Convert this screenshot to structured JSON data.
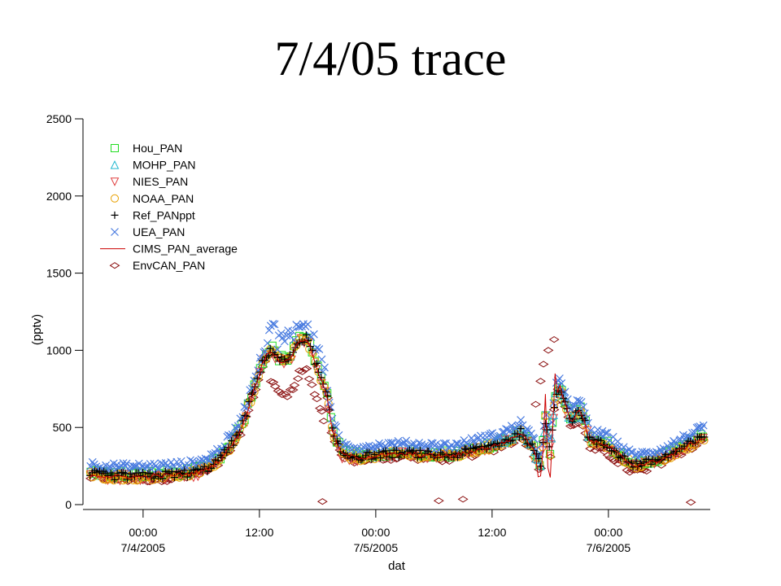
{
  "slide": {
    "title": "7/4/05 trace"
  },
  "chart_data": {
    "type": "scatter",
    "title": "",
    "xlabel": "dat",
    "ylabel": "(pptv)",
    "ylim": [
      0,
      2500
    ],
    "yticks": [
      0,
      500,
      1000,
      1500,
      2000,
      2500
    ],
    "xlim_hours": [
      -6.2,
      58.5
    ],
    "xticks": [
      {
        "h": 0,
        "line1": "00:00",
        "line2": "7/4/2005"
      },
      {
        "h": 12,
        "line1": "12:00",
        "line2": ""
      },
      {
        "h": 24,
        "line1": "00:00",
        "line2": "7/5/2005"
      },
      {
        "h": 36,
        "line1": "12:00",
        "line2": ""
      },
      {
        "h": 48,
        "line1": "00:00",
        "line2": "7/6/2005"
      }
    ],
    "x_unit": "hours since 7/4/2005 00:00",
    "legend_position": "top-left",
    "base_profile": [
      [
        -5.5,
        200
      ],
      [
        -3,
        185
      ],
      [
        0,
        185
      ],
      [
        3,
        195
      ],
      [
        5,
        205
      ],
      [
        6.5,
        230
      ],
      [
        8,
        300
      ],
      [
        9.5,
        420
      ],
      [
        10.5,
        560
      ],
      [
        11.5,
        760
      ],
      [
        12.5,
        950
      ],
      [
        13.2,
        1010
      ],
      [
        14,
        940
      ],
      [
        15,
        930
      ],
      [
        16,
        1060
      ],
      [
        16.8,
        1080
      ],
      [
        17.5,
        980
      ],
      [
        18.3,
        820
      ],
      [
        19,
        700
      ],
      [
        19.5,
        480
      ],
      [
        20.5,
        330
      ],
      [
        22,
        310
      ],
      [
        24,
        320
      ],
      [
        26,
        330
      ],
      [
        28,
        330
      ],
      [
        30,
        320
      ],
      [
        32,
        320
      ],
      [
        34,
        350
      ],
      [
        35,
        370
      ],
      [
        36,
        380
      ],
      [
        38,
        430
      ],
      [
        39,
        470
      ],
      [
        40,
        390
      ],
      [
        41,
        250
      ],
      [
        41.5,
        560
      ],
      [
        42,
        320
      ],
      [
        42.5,
        700
      ],
      [
        43,
        780
      ],
      [
        44,
        560
      ],
      [
        44.5,
        560
      ],
      [
        45,
        620
      ],
      [
        45.5,
        560
      ],
      [
        46,
        420
      ],
      [
        47,
        400
      ],
      [
        48,
        380
      ],
      [
        49,
        330
      ],
      [
        50.5,
        260
      ],
      [
        52,
        270
      ],
      [
        54,
        310
      ],
      [
        56,
        380
      ],
      [
        58,
        440
      ]
    ],
    "series": [
      {
        "name": "Hou_PAN",
        "marker": "square",
        "color": "#22dd22",
        "offset": 10,
        "hours": [
          -5.5,
          58
        ],
        "count": 200
      },
      {
        "name": "MOHP_PAN",
        "marker": "triangle",
        "color": "#22b8d0",
        "offset": 0,
        "hours": [
          36,
          46
        ],
        "count": 40
      },
      {
        "name": "NIES_PAN",
        "marker": "triangle-down",
        "color": "#e04040",
        "offset": -10,
        "hours": [
          -5.5,
          58
        ],
        "count": 150
      },
      {
        "name": "NOAA_PAN",
        "marker": "circle",
        "color": "#e8a000",
        "offset": -5,
        "hours": [
          -5.5,
          58
        ],
        "count": 230
      },
      {
        "name": "Ref_PANppt",
        "marker": "plus",
        "color": "#000000",
        "offset": 0,
        "hours": [
          -5.5,
          58
        ],
        "count": 280
      },
      {
        "name": "UEA_PAN",
        "marker": "x",
        "color": "#4a7ce0",
        "offset": 60,
        "hours": [
          -5.5,
          58
        ],
        "count": 320
      },
      {
        "name": "CIMS_PAN_average",
        "marker": "line",
        "color": "#cc0000",
        "offset": -5,
        "hours": [
          -5.5,
          58
        ],
        "count": 0
      },
      {
        "name": "EnvCAN_PAN",
        "marker": "diamond",
        "color": "#8b1010",
        "offset": -20,
        "hours": [
          -5.5,
          58
        ],
        "count": 250
      }
    ],
    "envcan_outliers": [
      [
        18.5,
        20
      ],
      [
        30.5,
        25
      ],
      [
        33,
        35
      ],
      [
        56.5,
        15
      ],
      [
        40.5,
        650
      ],
      [
        41,
        800
      ],
      [
        41.3,
        910
      ],
      [
        41.8,
        1000
      ],
      [
        42.4,
        1070
      ]
    ]
  }
}
